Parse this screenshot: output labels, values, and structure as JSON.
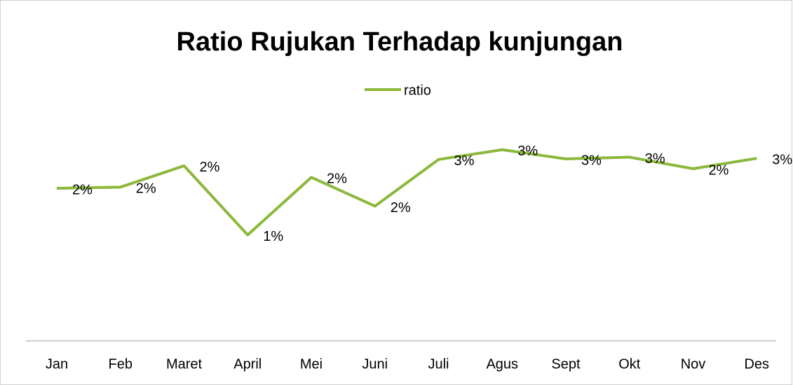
{
  "chart_data": {
    "type": "line",
    "title": "Ratio  Rujukan Terhadap kunjungan",
    "categories": [
      "Jan",
      "Feb",
      "Maret",
      "April",
      "Mei",
      "Juni",
      "Juli",
      "Agus",
      "Sept",
      "Okt",
      "Nov",
      "Des"
    ],
    "series": [
      {
        "name": "ratio",
        "color": "#8cb83c",
        "values": [
          2.05,
          2.07,
          2.44,
          1.24,
          2.24,
          1.74,
          2.55,
          2.72,
          2.56,
          2.59,
          2.39,
          2.57
        ],
        "value_labels": [
          "2%",
          "2%",
          "2%",
          "1%",
          "2%",
          "2%",
          "3%",
          "3%",
          "3%",
          "3%",
          "2%",
          "3%"
        ]
      }
    ],
    "ylim": [
      -0.6,
      3.8
    ],
    "legend": "top"
  }
}
